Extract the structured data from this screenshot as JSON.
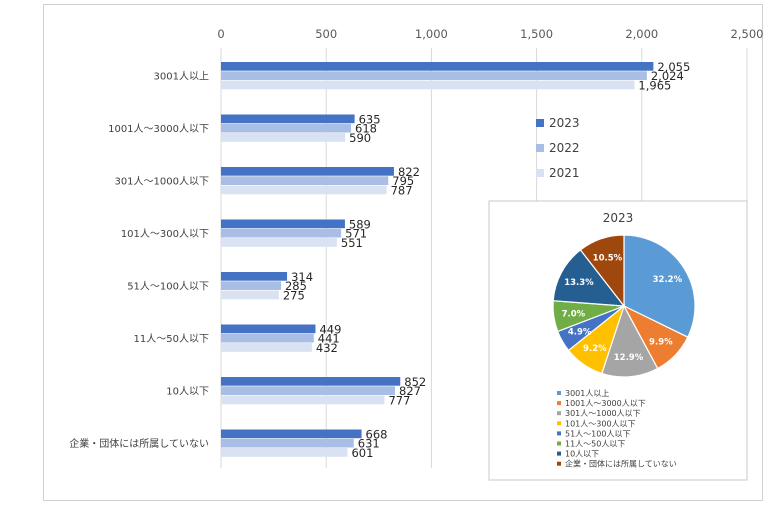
{
  "chart_data": [
    {
      "type": "bar",
      "orientation": "horizontal",
      "categories": [
        "3001人以上",
        "1001人～3000人以下",
        "301人～1000人以下",
        "101人～300人以下",
        "51人～100人以下",
        "11人～50人以下",
        "10人以下",
        "企業・団体には所属していない"
      ],
      "series": [
        {
          "name": "2023",
          "color": "#4472C4",
          "values": [
            2055,
            635,
            822,
            589,
            314,
            449,
            852,
            668
          ],
          "labels": [
            "2,055",
            "635",
            "822",
            "589",
            "314",
            "449",
            "852",
            "668"
          ]
        },
        {
          "name": "2022",
          "color": "#A9BEE4",
          "values": [
            2024,
            618,
            795,
            571,
            285,
            441,
            827,
            631
          ],
          "labels": [
            "2,024",
            "618",
            "795",
            "571",
            "285",
            "441",
            "827",
            "631"
          ]
        },
        {
          "name": "2021",
          "color": "#D9E2F3",
          "values": [
            1965,
            590,
            787,
            551,
            275,
            432,
            777,
            601
          ],
          "labels": [
            "1,965",
            "590",
            "787",
            "551",
            "275",
            "432",
            "777",
            "601"
          ]
        }
      ],
      "xlim": [
        0,
        2500
      ],
      "ticks": [
        0,
        500,
        1000,
        1500,
        2000,
        2500
      ],
      "tick_labels": [
        "0",
        "500",
        "1,000",
        "1,500",
        "2,000",
        "2,500"
      ],
      "grid": true,
      "legend_position": "right"
    },
    {
      "type": "pie",
      "title": "2023",
      "slices": [
        {
          "label": "3001人以上",
          "value": 32.2,
          "text": "32.2%",
          "color": "#5B9BD5"
        },
        {
          "label": "1001人～3000人以下",
          "value": 9.9,
          "text": "9.9%",
          "color": "#ED7D31"
        },
        {
          "label": "301人～1000人以下",
          "value": 12.9,
          "text": "12.9%",
          "color": "#A5A5A5"
        },
        {
          "label": "101人～300人以下",
          "value": 9.2,
          "text": "9.2%",
          "color": "#FFC000"
        },
        {
          "label": "51人～100人以下",
          "value": 4.9,
          "text": "4.9%",
          "color": "#4472C4"
        },
        {
          "label": "11人～50人以下",
          "value": 7.0,
          "text": "7.0%",
          "color": "#70AD47"
        },
        {
          "label": "10人以下",
          "value": 13.3,
          "text": "13.3%",
          "color": "#255E91"
        },
        {
          "label": "企業・団体には所属していない",
          "value": 10.5,
          "text": "10.5%",
          "color": "#9E480E"
        }
      ],
      "legend_position": "bottom"
    }
  ]
}
